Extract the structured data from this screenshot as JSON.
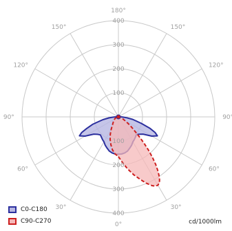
{
  "chart_data": {
    "type": "polar-luminous-intensity",
    "unit": "cd/1000lm",
    "radial_ticks": [
      100,
      200,
      300,
      400
    ],
    "radial_max": 400,
    "angle_labels": [
      "180°",
      "150°",
      "120°",
      "90°",
      "60°",
      "30°",
      "0°",
      "30°",
      "60°",
      "90°",
      "120°",
      "150°"
    ],
    "series": [
      {
        "name": "C0-C180",
        "color": "#2b2f9e",
        "fill": "#b7b6e2",
        "dashed": false,
        "points": [
          [
            0,
            155
          ],
          [
            5,
            155
          ],
          [
            10,
            152
          ],
          [
            15,
            147
          ],
          [
            20,
            138
          ],
          [
            25,
            130
          ],
          [
            30,
            120
          ],
          [
            35,
            115
          ],
          [
            40,
            110
          ],
          [
            45,
            105
          ],
          [
            50,
            112
          ],
          [
            55,
            125
          ],
          [
            60,
            160
          ],
          [
            64,
            180
          ],
          [
            67,
            165
          ],
          [
            70,
            140
          ],
          [
            74,
            100
          ],
          [
            77,
            75
          ],
          [
            80,
            60
          ],
          [
            84,
            35
          ],
          [
            87,
            20
          ],
          [
            90,
            12
          ],
          [
            95,
            6
          ],
          [
            120,
            4
          ],
          [
            150,
            4
          ],
          [
            180,
            5
          ],
          [
            210,
            4
          ],
          [
            240,
            4
          ],
          [
            265,
            6
          ],
          [
            270,
            12
          ],
          [
            273,
            22
          ],
          [
            276,
            40
          ],
          [
            280,
            65
          ],
          [
            283,
            82
          ],
          [
            286,
            110
          ],
          [
            290,
            140
          ],
          [
            293,
            165
          ],
          [
            296,
            180
          ],
          [
            300,
            160
          ],
          [
            305,
            125
          ],
          [
            310,
            113
          ],
          [
            315,
            106
          ],
          [
            320,
            110
          ],
          [
            325,
            115
          ],
          [
            330,
            120
          ],
          [
            335,
            130
          ],
          [
            340,
            138
          ],
          [
            345,
            147
          ],
          [
            350,
            152
          ],
          [
            355,
            155
          ]
        ]
      },
      {
        "name": "C90-C270",
        "color": "#cc1f1f",
        "fill": "#f5b8b8",
        "dashed": true,
        "points": [
          [
            0,
            165
          ],
          [
            5,
            190
          ],
          [
            10,
            220
          ],
          [
            15,
            250
          ],
          [
            20,
            280
          ],
          [
            23,
            300
          ],
          [
            26,
            318
          ],
          [
            28,
            326
          ],
          [
            30,
            328
          ],
          [
            32,
            322
          ],
          [
            34,
            305
          ],
          [
            36,
            280
          ],
          [
            38,
            252
          ],
          [
            40,
            220
          ],
          [
            42,
            188
          ],
          [
            44,
            155
          ],
          [
            46,
            125
          ],
          [
            48,
            100
          ],
          [
            52,
            70
          ],
          [
            56,
            48
          ],
          [
            60,
            32
          ],
          [
            70,
            16
          ],
          [
            80,
            10
          ],
          [
            90,
            6
          ],
          [
            120,
            4
          ],
          [
            150,
            4
          ],
          [
            180,
            5
          ],
          [
            210,
            4
          ],
          [
            240,
            4
          ],
          [
            270,
            6
          ],
          [
            285,
            10
          ],
          [
            300,
            18
          ],
          [
            315,
            30
          ],
          [
            325,
            45
          ],
          [
            330,
            60
          ],
          [
            335,
            80
          ],
          [
            340,
            100
          ],
          [
            345,
            120
          ],
          [
            350,
            140
          ],
          [
            355,
            155
          ]
        ]
      }
    ]
  }
}
